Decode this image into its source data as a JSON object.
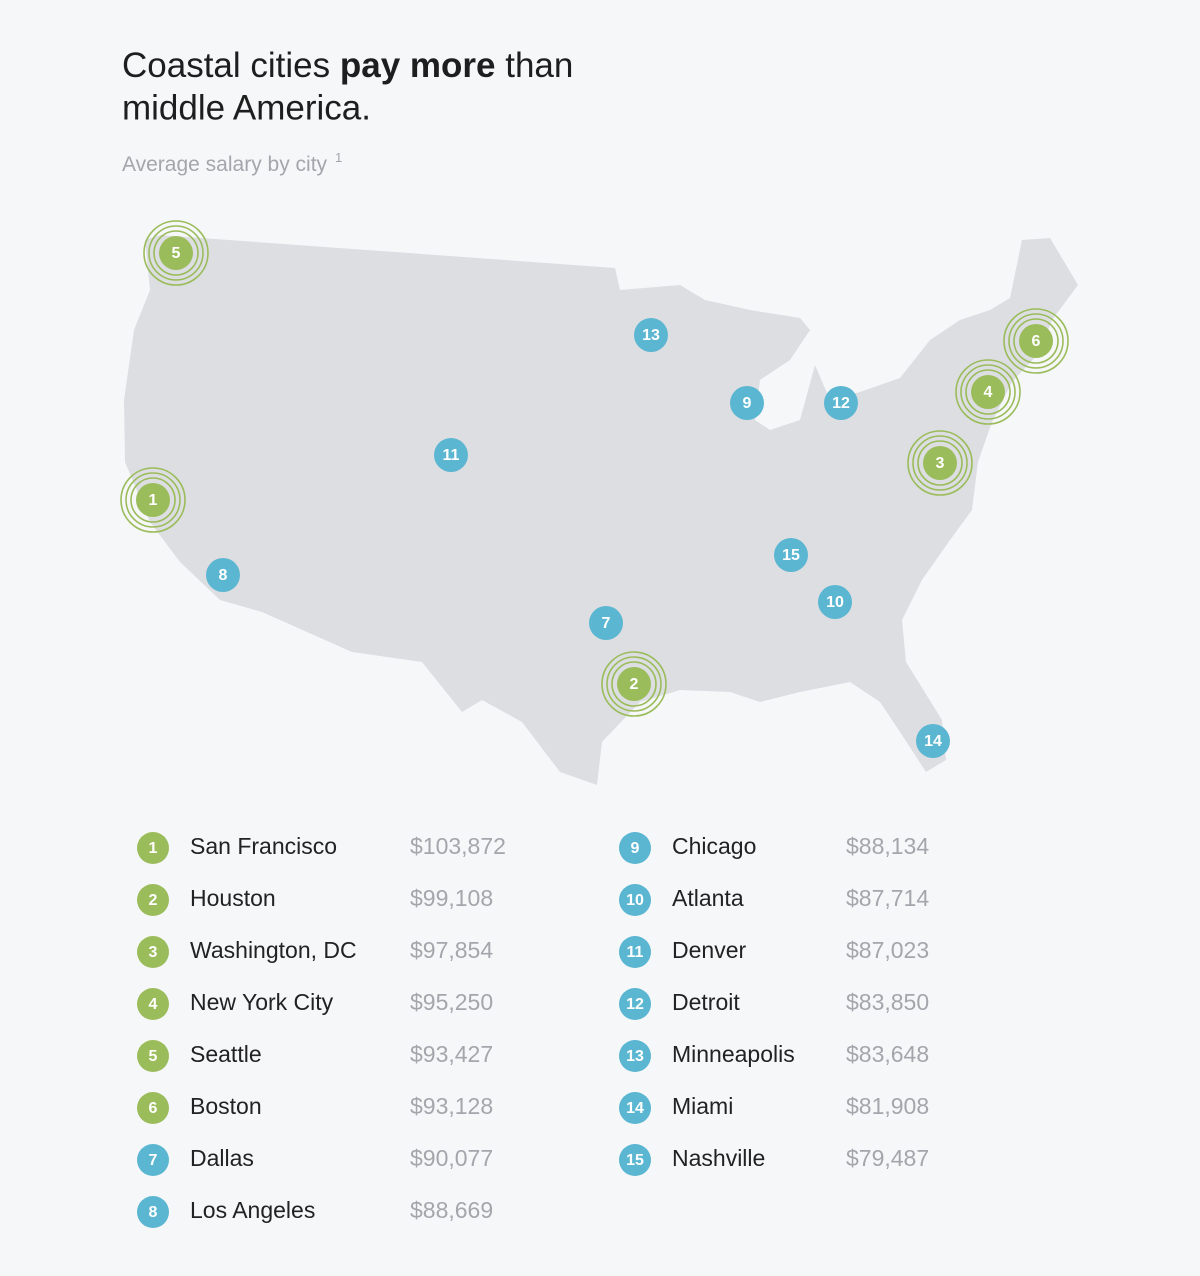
{
  "header": {
    "title": [
      "Coastal cities ",
      "pay more",
      " than",
      "middle America."
    ],
    "subtitle": "Average salary by city",
    "footnote_mark": "1"
  },
  "cities": [
    {
      "rank": "1",
      "name": "San Francisco",
      "salary": "$103,872"
    },
    {
      "rank": "2",
      "name": "Houston",
      "salary": "$99,108"
    },
    {
      "rank": "3",
      "name": "Washington, DC",
      "salary": "$97,854"
    },
    {
      "rank": "4",
      "name": "New York City",
      "salary": "$95,250"
    },
    {
      "rank": "5",
      "name": "Seattle",
      "salary": "$93,427"
    },
    {
      "rank": "6",
      "name": "Boston",
      "salary": "$93,128"
    },
    {
      "rank": "7",
      "name": "Dallas",
      "salary": "$90,077"
    },
    {
      "rank": "8",
      "name": "Los Angeles",
      "salary": "$88,669"
    },
    {
      "rank": "9",
      "name": "Chicago",
      "salary": "$88,134"
    },
    {
      "rank": "10",
      "name": "Atlanta",
      "salary": "$87,714"
    },
    {
      "rank": "11",
      "name": "Denver",
      "salary": "$87,023"
    },
    {
      "rank": "12",
      "name": "Detroit",
      "salary": "$83,850"
    },
    {
      "rank": "13",
      "name": "Minneapolis",
      "salary": "$83,648"
    },
    {
      "rank": "14",
      "name": "Miami",
      "salary": "$81,908"
    },
    {
      "rank": "15",
      "name": "Nashville",
      "salary": "$79,487"
    }
  ]
}
